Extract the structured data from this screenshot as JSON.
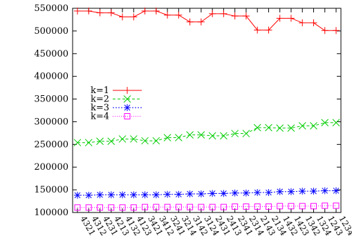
{
  "chart_data": {
    "type": "line",
    "title": "",
    "xlabel": "",
    "ylabel": "",
    "categories": [
      "4321",
      "4312",
      "4231",
      "4213",
      "4132",
      "4123",
      "3421",
      "3412",
      "3241",
      "3214",
      "3142",
      "3124",
      "2431",
      "2413",
      "2341",
      "2314",
      "2143",
      "2134",
      "1432",
      "1423",
      "1342",
      "1324",
      "1243",
      "1234"
    ],
    "ylim": [
      100000,
      550000
    ],
    "yticks": [
      100000,
      150000,
      200000,
      250000,
      300000,
      350000,
      400000,
      450000,
      500000,
      550000
    ],
    "ytick_labels": [
      "100000",
      "150000",
      "200000",
      "250000",
      "300000",
      "350000",
      "400000",
      "450000",
      "500000",
      "550000"
    ],
    "grid": false,
    "legend_position": "left-middle",
    "series": [
      {
        "name": "k=1",
        "color": "#ff0000",
        "marker": "plus",
        "dash": "",
        "values": [
          544000,
          544000,
          540000,
          540000,
          531000,
          531000,
          544000,
          544000,
          535000,
          535000,
          520000,
          520000,
          538000,
          538000,
          533000,
          533000,
          502000,
          502000,
          528000,
          528000,
          518000,
          518000,
          501000,
          501000
        ]
      },
      {
        "name": "k=2",
        "color": "#00cc00",
        "marker": "cross",
        "dash": "4,3",
        "values": [
          254000,
          254000,
          257000,
          257000,
          262000,
          262000,
          258000,
          258000,
          265000,
          265000,
          271000,
          271000,
          269000,
          269000,
          274000,
          274000,
          287000,
          287000,
          286000,
          286000,
          291000,
          291000,
          298000,
          298000
        ]
      },
      {
        "name": "k=3",
        "color": "#0000ff",
        "marker": "star",
        "dash": "2,2",
        "values": [
          138000,
          138000,
          139000,
          139000,
          139000,
          139000,
          139000,
          139000,
          140000,
          140000,
          141000,
          141000,
          142000,
          142000,
          143000,
          143000,
          144000,
          144000,
          146000,
          146000,
          147000,
          147000,
          148000,
          148000
        ]
      },
      {
        "name": "k=4",
        "color": "#ff00ff",
        "marker": "square",
        "dash": "1,2",
        "values": [
          111000,
          111000,
          111000,
          111000,
          111000,
          111000,
          112000,
          112000,
          112000,
          112000,
          112000,
          112000,
          112000,
          112000,
          113000,
          113000,
          113000,
          113000,
          114000,
          114000,
          114000,
          114000,
          115000,
          115000
        ]
      }
    ]
  }
}
